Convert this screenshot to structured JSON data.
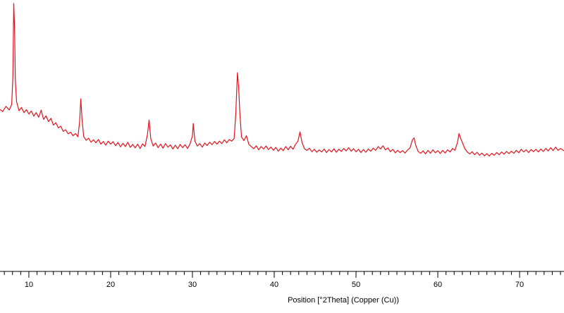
{
  "chart_data": {
    "type": "line",
    "xlabel": "Position [°2Theta] (Copper (Cu))",
    "color": "#e0141e",
    "xlim": [
      6.47,
      75.43
    ],
    "ylim": [
      0,
      100
    ],
    "xticks": [
      10,
      20,
      30,
      40,
      50,
      60,
      70
    ],
    "xminorticks": [
      7,
      8,
      9,
      11,
      12,
      13,
      14,
      15,
      16,
      17,
      18,
      19,
      21,
      22,
      23,
      24,
      25,
      26,
      27,
      28,
      29,
      31,
      32,
      33,
      34,
      35,
      36,
      37,
      38,
      39,
      41,
      42,
      43,
      44,
      45,
      46,
      47,
      48,
      49,
      51,
      52,
      53,
      54,
      55,
      56,
      57,
      58,
      59,
      61,
      62,
      63,
      64,
      65,
      66,
      67,
      68,
      69,
      71,
      72,
      73,
      74,
      75
    ],
    "x": [
      6.47,
      6.8,
      7.2,
      7.6,
      7.9,
      8.05,
      8.15,
      8.25,
      8.35,
      8.5,
      8.8,
      9.1,
      9.4,
      9.7,
      10.0,
      10.3,
      10.6,
      10.9,
      11.2,
      11.5,
      11.8,
      12.1,
      12.4,
      12.7,
      13.0,
      13.3,
      13.6,
      13.9,
      14.2,
      14.5,
      14.8,
      15.1,
      15.4,
      15.7,
      16.0,
      16.2,
      16.35,
      16.5,
      16.7,
      17.0,
      17.3,
      17.6,
      17.9,
      18.2,
      18.5,
      18.8,
      19.1,
      19.4,
      19.7,
      20.0,
      20.3,
      20.6,
      20.9,
      21.2,
      21.5,
      21.8,
      22.1,
      22.4,
      22.7,
      23.0,
      23.3,
      23.6,
      23.9,
      24.2,
      24.5,
      24.7,
      24.9,
      25.2,
      25.5,
      25.8,
      26.1,
      26.4,
      26.7,
      27.0,
      27.3,
      27.6,
      27.9,
      28.2,
      28.5,
      28.8,
      29.1,
      29.4,
      29.7,
      30.0,
      30.1,
      30.3,
      30.6,
      30.9,
      31.2,
      31.5,
      31.8,
      32.1,
      32.4,
      32.7,
      33.0,
      33.3,
      33.6,
      33.9,
      34.2,
      34.5,
      34.8,
      35.1,
      35.3,
      35.5,
      35.65,
      35.8,
      36.0,
      36.3,
      36.6,
      36.9,
      37.2,
      37.5,
      37.8,
      38.1,
      38.4,
      38.7,
      39.0,
      39.3,
      39.6,
      39.9,
      40.2,
      40.5,
      40.8,
      41.1,
      41.4,
      41.7,
      42.0,
      42.3,
      42.6,
      42.9,
      43.15,
      43.4,
      43.7,
      44.0,
      44.3,
      44.6,
      44.9,
      45.2,
      45.5,
      45.8,
      46.1,
      46.4,
      46.7,
      47.0,
      47.3,
      47.6,
      47.9,
      48.2,
      48.5,
      48.8,
      49.1,
      49.4,
      49.7,
      50.0,
      50.3,
      50.6,
      50.9,
      51.2,
      51.5,
      51.8,
      52.1,
      52.4,
      52.7,
      53.0,
      53.3,
      53.6,
      53.9,
      54.2,
      54.5,
      54.8,
      55.1,
      55.4,
      55.7,
      56.0,
      56.3,
      56.6,
      56.9,
      57.1,
      57.3,
      57.6,
      57.9,
      58.2,
      58.5,
      58.8,
      59.1,
      59.4,
      59.7,
      60.0,
      60.3,
      60.6,
      60.9,
      61.2,
      61.5,
      61.8,
      62.1,
      62.4,
      62.6,
      62.8,
      63.0,
      63.3,
      63.6,
      63.9,
      64.2,
      64.5,
      64.8,
      65.1,
      65.4,
      65.7,
      66.0,
      66.3,
      66.6,
      66.9,
      67.2,
      67.5,
      67.8,
      68.1,
      68.4,
      68.7,
      69.0,
      69.3,
      69.6,
      69.9,
      70.2,
      70.5,
      70.8,
      71.1,
      71.4,
      71.7,
      72.0,
      72.3,
      72.6,
      72.9,
      73.2,
      73.5,
      73.8,
      74.1,
      74.4,
      74.7,
      75.0,
      75.43
    ],
    "values": [
      59.7,
      58.9,
      60.8,
      59.5,
      61.5,
      72,
      98.7,
      90,
      70,
      62.5,
      59.2,
      60.4,
      58.5,
      59.6,
      58.0,
      59.1,
      57.2,
      58.5,
      56.8,
      59.4,
      56.0,
      57.3,
      55.2,
      56.4,
      53.9,
      54.8,
      52.9,
      53.5,
      51.6,
      52.2,
      50.7,
      51.3,
      50.0,
      50.8,
      49.6,
      55.0,
      63.6,
      56,
      49.8,
      48.3,
      49.1,
      47.6,
      48.5,
      47.4,
      48.6,
      46.9,
      47.9,
      46.5,
      48.0,
      46.9,
      47.8,
      46.3,
      47.5,
      45.9,
      47.2,
      46.0,
      47.6,
      45.7,
      46.8,
      45.5,
      46.9,
      45.3,
      47.0,
      46.0,
      50.5,
      55.8,
      49.0,
      46.2,
      47.3,
      45.6,
      46.9,
      45.4,
      47.1,
      45.8,
      46.6,
      45.1,
      46.5,
      45.2,
      46.8,
      45.6,
      46.7,
      45.3,
      46.9,
      50.0,
      54.5,
      48.0,
      46.2,
      47.1,
      45.8,
      47.3,
      46.4,
      47.6,
      46.7,
      47.9,
      46.9,
      48.0,
      47.1,
      48.5,
      47.4,
      48.6,
      48.0,
      49.0,
      58,
      73.2,
      68,
      58,
      49.5,
      48.2,
      50.0,
      46.8,
      46.0,
      45.2,
      46.3,
      44.8,
      46.0,
      45.1,
      46.2,
      44.9,
      45.8,
      44.6,
      45.7,
      44.3,
      45.4,
      44.5,
      46.0,
      44.8,
      46.1,
      45.0,
      46.8,
      48.0,
      51.4,
      47.5,
      45.2,
      44.6,
      45.4,
      44.1,
      45.0,
      43.9,
      44.8,
      44.0,
      45.1,
      43.8,
      44.9,
      44.0,
      45.2,
      43.9,
      45.0,
      44.2,
      45.3,
      44.4,
      45.6,
      44.3,
      45.2,
      44.1,
      45.0,
      43.8,
      44.9,
      43.9,
      45.1,
      44.3,
      45.4,
      44.6,
      46.0,
      45.1,
      46.3,
      44.8,
      45.5,
      44.1,
      45.0,
      43.7,
      44.6,
      43.8,
      44.5,
      43.6,
      44.7,
      45.5,
      48.5,
      49.2,
      46.5,
      44.2,
      43.5,
      44.4,
      43.3,
      44.6,
      43.5,
      44.8,
      43.7,
      44.5,
      43.4,
      44.6,
      43.6,
      44.8,
      44.0,
      45.3,
      44.6,
      47.5,
      50.8,
      49.0,
      47.5,
      45.3,
      44.0,
      43.3,
      44.1,
      43.0,
      43.9,
      42.8,
      43.6,
      42.6,
      43.4,
      42.5,
      43.5,
      42.8,
      43.8,
      43.0,
      44.0,
      43.2,
      44.2,
      43.4,
      44.3,
      43.5,
      44.6,
      43.7,
      45.0,
      44.0,
      44.8,
      43.8,
      44.9,
      44.1,
      45.0,
      44.0,
      45.1,
      44.2,
      45.3,
      44.4,
      45.6,
      44.5,
      45.8,
      44.6,
      45.3,
      44.4
    ]
  }
}
